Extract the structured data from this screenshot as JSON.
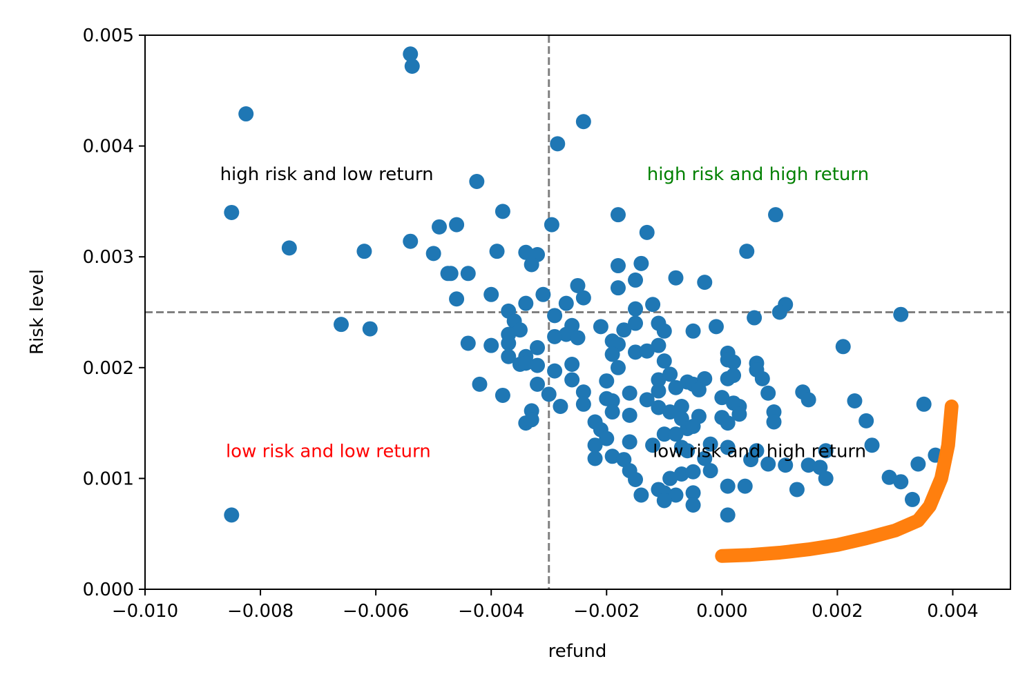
{
  "chart_data": {
    "type": "scatter",
    "xlabel": "refund",
    "ylabel": "Risk level",
    "xlim": [
      -0.01,
      0.005
    ],
    "ylim": [
      0.0,
      0.005
    ],
    "xticks": [
      "−0.010",
      "−0.008",
      "−0.006",
      "−0.004",
      "−0.002",
      "0.000",
      "0.002",
      "0.004"
    ],
    "xtick_values": [
      -0.01,
      -0.008,
      -0.006,
      -0.004,
      -0.002,
      0.0,
      0.002,
      0.004
    ],
    "yticks": [
      "0.000",
      "0.001",
      "0.002",
      "0.003",
      "0.004",
      "0.005"
    ],
    "ytick_values": [
      0.0,
      0.001,
      0.002,
      0.003,
      0.004,
      0.005
    ],
    "grid": false,
    "reference_lines": {
      "x": -0.003,
      "y": 0.0025,
      "color": "#808080",
      "style": "dashed"
    },
    "annotations": [
      {
        "text": "high risk and low return",
        "x": -0.0087,
        "y": 0.00375,
        "color": "#000000"
      },
      {
        "text": "high risk and high return",
        "x": -0.0013,
        "y": 0.00375,
        "color": "#008000"
      },
      {
        "text": "low risk and low return",
        "x": -0.0086,
        "y": 0.00125,
        "color": "#ff0000"
      },
      {
        "text": "low risk and high return",
        "x": -0.0012,
        "y": 0.00125,
        "color": "#000000"
      }
    ],
    "series": [
      {
        "type": "scatter",
        "color": "#1f77b4",
        "points": [
          [
            -0.0054,
            0.00483
          ],
          [
            -0.00537,
            0.00472
          ],
          [
            -0.00825,
            0.00429
          ],
          [
            -0.0024,
            0.00422
          ],
          [
            -0.00285,
            0.00402
          ],
          [
            -0.00425,
            0.00368
          ],
          [
            -0.0085,
            0.0034
          ],
          [
            -0.0038,
            0.00341
          ],
          [
            -0.00295,
            0.00329
          ],
          [
            -0.0046,
            0.00329
          ],
          [
            -0.0049,
            0.00327
          ],
          [
            -0.0018,
            0.00338
          ],
          [
            0.00093,
            0.00338
          ],
          [
            -0.0054,
            0.00314
          ],
          [
            -0.0075,
            0.00308
          ],
          [
            -0.0062,
            0.00305
          ],
          [
            -0.005,
            0.00303
          ],
          [
            -0.0039,
            0.00305
          ],
          [
            -0.0034,
            0.00304
          ],
          [
            -0.0032,
            0.00302
          ],
          [
            -0.0033,
            0.00293
          ],
          [
            -0.0013,
            0.00322
          ],
          [
            0.00043,
            0.00305
          ],
          [
            -0.0047,
            0.00285
          ],
          [
            -0.00475,
            0.00285
          ],
          [
            -0.0044,
            0.00285
          ],
          [
            -0.0018,
            0.00292
          ],
          [
            -0.0014,
            0.00294
          ],
          [
            -0.0008,
            0.00281
          ],
          [
            -0.0015,
            0.00279
          ],
          [
            -0.0025,
            0.00274
          ],
          [
            -0.0018,
            0.00272
          ],
          [
            -0.0003,
            0.00277
          ],
          [
            -0.004,
            0.00266
          ],
          [
            -0.0046,
            0.00262
          ],
          [
            -0.0031,
            0.00266
          ],
          [
            -0.0024,
            0.00263
          ],
          [
            -0.0027,
            0.00258
          ],
          [
            -0.0034,
            0.00258
          ],
          [
            -0.0012,
            0.00257
          ],
          [
            -0.0015,
            0.00253
          ],
          [
            -0.0037,
            0.00251
          ],
          [
            0.0011,
            0.00257
          ],
          [
            0.001,
            0.0025
          ],
          [
            0.0031,
            0.00248
          ],
          [
            -0.0029,
            0.00247
          ],
          [
            0.00056,
            0.00245
          ],
          [
            -0.0036,
            0.00242
          ],
          [
            -0.0026,
            0.00238
          ],
          [
            -0.0021,
            0.00237
          ],
          [
            -0.0015,
            0.0024
          ],
          [
            -0.0011,
            0.0024
          ],
          [
            -0.0066,
            0.00239
          ],
          [
            -0.0061,
            0.00235
          ],
          [
            -0.0035,
            0.00234
          ],
          [
            -0.0017,
            0.00234
          ],
          [
            -0.001,
            0.00233
          ],
          [
            -0.0005,
            0.00233
          ],
          [
            -0.0001,
            0.00237
          ],
          [
            -0.0037,
            0.0023
          ],
          [
            -0.0027,
            0.0023
          ],
          [
            -0.0029,
            0.00228
          ],
          [
            -0.0025,
            0.00227
          ],
          [
            -0.0019,
            0.00224
          ],
          [
            -0.0018,
            0.00221
          ],
          [
            -0.0044,
            0.00222
          ],
          [
            -0.004,
            0.0022
          ],
          [
            -0.0037,
            0.00222
          ],
          [
            -0.0011,
            0.0022
          ],
          [
            -0.0015,
            0.00214
          ],
          [
            -0.0013,
            0.00215
          ],
          [
            0.0021,
            0.00219
          ],
          [
            -0.0034,
            0.0021
          ],
          [
            -0.0037,
            0.0021
          ],
          [
            -0.0032,
            0.00218
          ],
          [
            -0.0019,
            0.00212
          ],
          [
            -0.0035,
            0.00203
          ],
          [
            -0.0034,
            0.00204
          ],
          [
            -0.0032,
            0.00202
          ],
          [
            -0.001,
            0.00206
          ],
          [
            0.0001,
            0.00213
          ],
          [
            0.0001,
            0.00207
          ],
          [
            0.0002,
            0.00205
          ],
          [
            0.0006,
            0.00204
          ],
          [
            -0.0026,
            0.00203
          ],
          [
            -0.0018,
            0.002
          ],
          [
            -0.0029,
            0.00197
          ],
          [
            -0.002,
            0.00188
          ],
          [
            -0.0011,
            0.00189
          ],
          [
            -0.0009,
            0.00194
          ],
          [
            -0.0006,
            0.00187
          ],
          [
            -0.0005,
            0.00185
          ],
          [
            -0.0003,
            0.0019
          ],
          [
            0.0001,
            0.0019
          ],
          [
            0.0002,
            0.00193
          ],
          [
            0.0006,
            0.00198
          ],
          [
            0.0007,
            0.0019
          ],
          [
            -0.0042,
            0.00185
          ],
          [
            -0.0032,
            0.00185
          ],
          [
            -0.0026,
            0.00189
          ],
          [
            -0.0024,
            0.00178
          ],
          [
            -0.0016,
            0.00177
          ],
          [
            -0.0011,
            0.00179
          ],
          [
            -0.0008,
            0.00182
          ],
          [
            -0.0004,
            0.0018
          ],
          [
            0.0008,
            0.00177
          ],
          [
            0.0014,
            0.00178
          ],
          [
            -0.0038,
            0.00175
          ],
          [
            -0.003,
            0.00176
          ],
          [
            -0.002,
            0.00172
          ],
          [
            -0.0019,
            0.0017
          ],
          [
            -0.0013,
            0.00171
          ],
          [
            0.0,
            0.00173
          ],
          [
            0.0002,
            0.00168
          ],
          [
            0.0015,
            0.00171
          ],
          [
            0.0023,
            0.0017
          ],
          [
            0.0035,
            0.00167
          ],
          [
            -0.0028,
            0.00165
          ],
          [
            -0.0024,
            0.00167
          ],
          [
            -0.0011,
            0.00164
          ],
          [
            -0.0007,
            0.00165
          ],
          [
            0.0003,
            0.00165
          ],
          [
            0.0003,
            0.00158
          ],
          [
            -0.0033,
            0.00161
          ],
          [
            -0.0019,
            0.0016
          ],
          [
            -0.0016,
            0.00157
          ],
          [
            -0.0009,
            0.0016
          ],
          [
            -0.0004,
            0.00156
          ],
          [
            0.0,
            0.00155
          ],
          [
            0.0009,
            0.0016
          ],
          [
            -0.0034,
            0.0015
          ],
          [
            -0.0033,
            0.00153
          ],
          [
            -0.0022,
            0.00151
          ],
          [
            -0.0007,
            0.00154
          ],
          [
            0.0001,
            0.0015
          ],
          [
            0.0009,
            0.00151
          ],
          [
            0.0025,
            0.00152
          ],
          [
            -0.0021,
            0.00144
          ],
          [
            -0.0006,
            0.00145
          ],
          [
            -0.0005,
            0.00147
          ],
          [
            -0.001,
            0.0014
          ],
          [
            -0.0008,
            0.0014
          ],
          [
            -0.002,
            0.00136
          ],
          [
            -0.0016,
            0.00133
          ],
          [
            -0.0022,
            0.0013
          ],
          [
            -0.0002,
            0.00131
          ],
          [
            0.0026,
            0.0013
          ],
          [
            -0.0007,
            0.00128
          ],
          [
            -0.0012,
            0.0013
          ],
          [
            -0.0006,
            0.00125
          ],
          [
            0.0001,
            0.00128
          ],
          [
            0.0006,
            0.00125
          ],
          [
            -0.0022,
            0.00118
          ],
          [
            -0.0019,
            0.0012
          ],
          [
            -0.0017,
            0.00117
          ],
          [
            -0.0003,
            0.00118
          ],
          [
            0.0005,
            0.00117
          ],
          [
            0.0008,
            0.00113
          ],
          [
            0.0011,
            0.00112
          ],
          [
            0.0015,
            0.00112
          ],
          [
            0.0017,
            0.0011
          ],
          [
            0.0018,
            0.00125
          ],
          [
            0.0037,
            0.00121
          ],
          [
            -0.0016,
            0.00107
          ],
          [
            -0.0007,
            0.00104
          ],
          [
            -0.0005,
            0.00106
          ],
          [
            -0.0002,
            0.00107
          ],
          [
            -0.0015,
            0.00099
          ],
          [
            -0.0009,
            0.001
          ],
          [
            0.0018,
            0.001
          ],
          [
            0.0029,
            0.00101
          ],
          [
            0.0031,
            0.00097
          ],
          [
            0.0034,
            0.00113
          ],
          [
            -0.0011,
            0.0009
          ],
          [
            -0.001,
            0.00087
          ],
          [
            -0.0008,
            0.00085
          ],
          [
            -0.0014,
            0.00085
          ],
          [
            -0.0005,
            0.00087
          ],
          [
            0.0001,
            0.00093
          ],
          [
            0.0004,
            0.00093
          ],
          [
            0.0013,
            0.0009
          ],
          [
            0.0033,
            0.00081
          ],
          [
            -0.001,
            0.0008
          ],
          [
            -0.0005,
            0.00076
          ],
          [
            0.0001,
            0.00067
          ],
          [
            -0.0085,
            0.00067
          ]
        ]
      },
      {
        "type": "frontier",
        "color": "#ff7f0e",
        "points": [
          [
            0.0,
            0.0003
          ],
          [
            0.0005,
            0.00031
          ],
          [
            0.001,
            0.00033
          ],
          [
            0.0015,
            0.00036
          ],
          [
            0.002,
            0.0004
          ],
          [
            0.0025,
            0.00046
          ],
          [
            0.003,
            0.00053
          ],
          [
            0.0034,
            0.00062
          ],
          [
            0.0036,
            0.00075
          ],
          [
            0.0038,
            0.001
          ],
          [
            0.00392,
            0.0013
          ],
          [
            0.00398,
            0.00165
          ]
        ]
      }
    ]
  }
}
